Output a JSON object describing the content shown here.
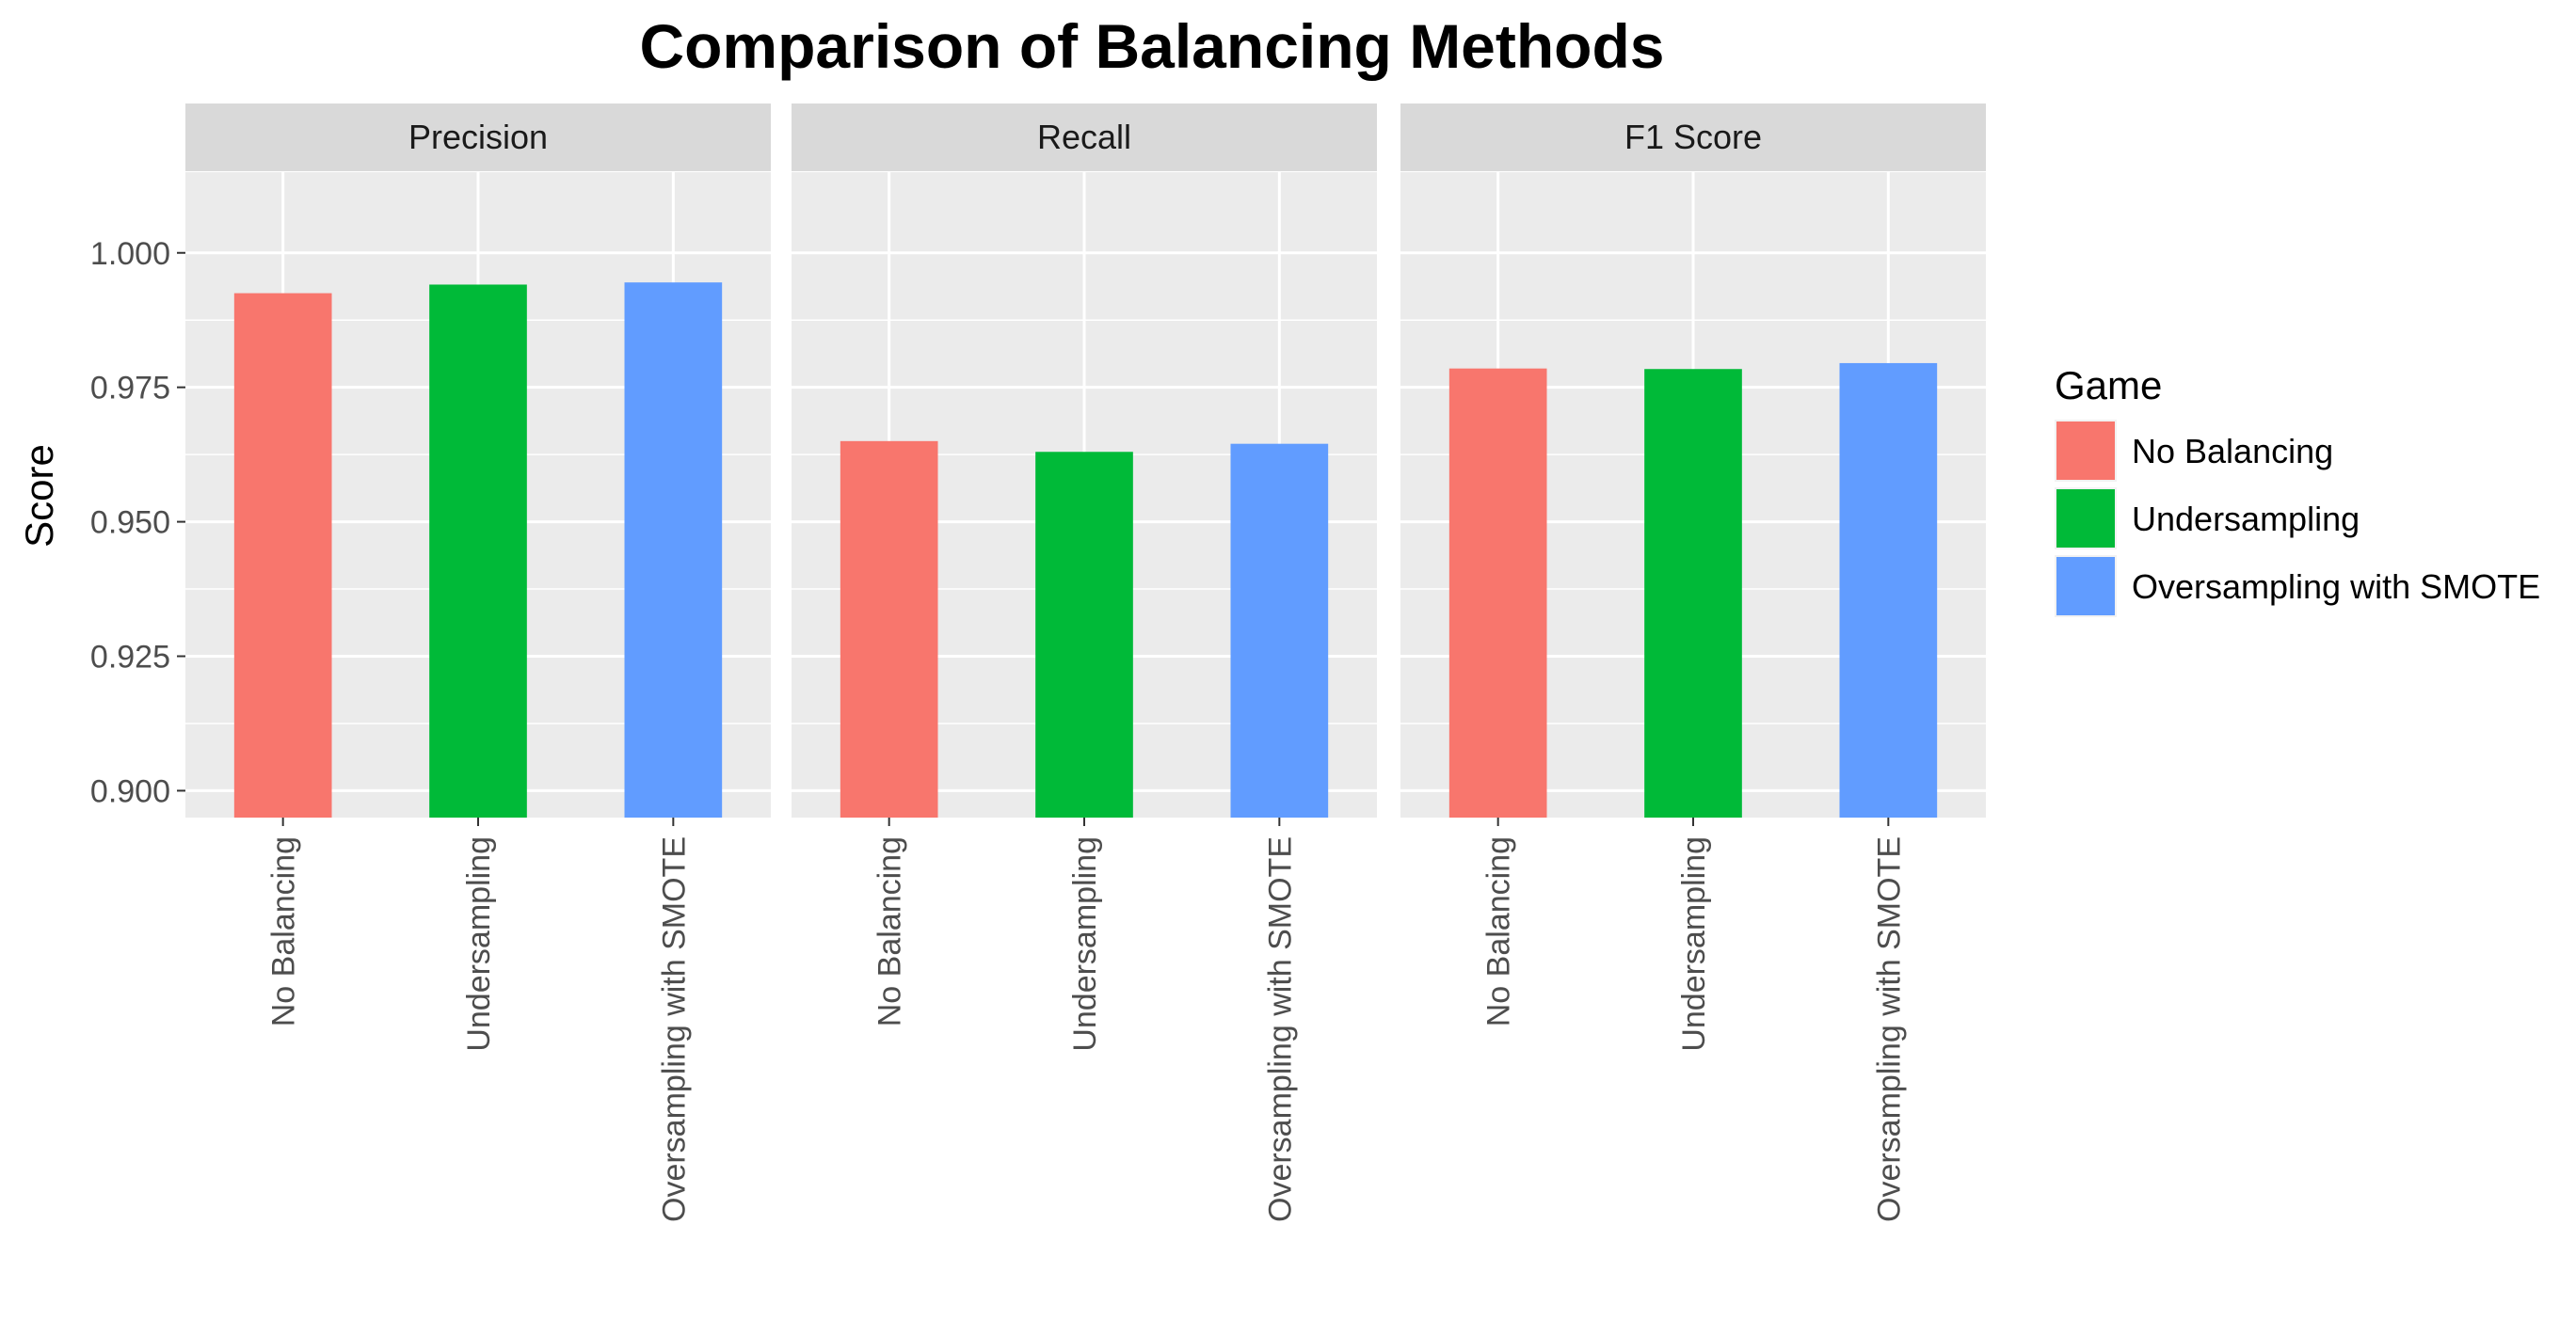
{
  "colors": {
    "panel_background": "#ebebeb",
    "strip_background": "#d9d9d9",
    "grid": "#ffffff",
    "tick_text": "#4d4d4d"
  },
  "chart_data": {
    "type": "bar",
    "title": "Comparison of Balancing Methods",
    "xlabel": "",
    "ylabel": "Score",
    "ylim": [
      0.895,
      1.015
    ],
    "yticks": [
      0.9,
      0.925,
      0.95,
      0.975,
      1.0
    ],
    "ytick_labels": [
      "0.900",
      "0.925",
      "0.950",
      "0.975",
      "1.000"
    ],
    "categories": [
      "No Balancing",
      "Undersampling",
      "Oversampling with SMOTE"
    ],
    "grid": true,
    "legend": {
      "title": "Game",
      "position": "right",
      "entries": [
        {
          "label": "No Balancing",
          "color": "#F8766D"
        },
        {
          "label": "Undersampling",
          "color": "#00BA38"
        },
        {
          "label": "Oversampling with SMOTE",
          "color": "#619CFF"
        }
      ]
    },
    "facets": [
      {
        "label": "Precision",
        "values": [
          0.9925,
          0.9941,
          0.9945
        ]
      },
      {
        "label": "Recall",
        "values": [
          0.965,
          0.963,
          0.9645
        ]
      },
      {
        "label": "F1 Score",
        "values": [
          0.9785,
          0.9784,
          0.9795
        ]
      }
    ]
  }
}
